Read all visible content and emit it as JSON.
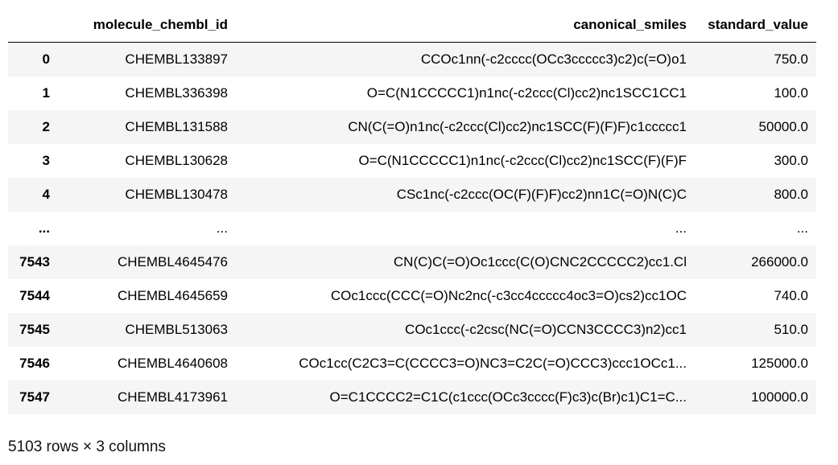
{
  "table": {
    "columns": [
      "",
      "molecule_chembl_id",
      "canonical_smiles",
      "standard_value"
    ],
    "rows": [
      {
        "index": "0",
        "molecule_chembl_id": "CHEMBL133897",
        "canonical_smiles": "CCOc1nn(-c2cccc(OCc3ccccc3)c2)c(=O)o1",
        "standard_value": "750.0"
      },
      {
        "index": "1",
        "molecule_chembl_id": "CHEMBL336398",
        "canonical_smiles": "O=C(N1CCCCC1)n1nc(-c2ccc(Cl)cc2)nc1SCC1CC1",
        "standard_value": "100.0"
      },
      {
        "index": "2",
        "molecule_chembl_id": "CHEMBL131588",
        "canonical_smiles": "CN(C(=O)n1nc(-c2ccc(Cl)cc2)nc1SCC(F)(F)F)c1ccccc1",
        "standard_value": "50000.0"
      },
      {
        "index": "3",
        "molecule_chembl_id": "CHEMBL130628",
        "canonical_smiles": "O=C(N1CCCCC1)n1nc(-c2ccc(Cl)cc2)nc1SCC(F)(F)F",
        "standard_value": "300.0"
      },
      {
        "index": "4",
        "molecule_chembl_id": "CHEMBL130478",
        "canonical_smiles": "CSc1nc(-c2ccc(OC(F)(F)F)cc2)nn1C(=O)N(C)C",
        "standard_value": "800.0"
      },
      {
        "index": "...",
        "molecule_chembl_id": "...",
        "canonical_smiles": "...",
        "standard_value": "..."
      },
      {
        "index": "7543",
        "molecule_chembl_id": "CHEMBL4645476",
        "canonical_smiles": "CN(C)C(=O)Oc1ccc(C(O)CNC2CCCCC2)cc1.Cl",
        "standard_value": "266000.0"
      },
      {
        "index": "7544",
        "molecule_chembl_id": "CHEMBL4645659",
        "canonical_smiles": "COc1ccc(CCC(=O)Nc2nc(-c3cc4ccccc4oc3=O)cs2)cc1OC",
        "standard_value": "740.0"
      },
      {
        "index": "7545",
        "molecule_chembl_id": "CHEMBL513063",
        "canonical_smiles": "COc1ccc(-c2csc(NC(=O)CCN3CCCC3)n2)cc1",
        "standard_value": "510.0"
      },
      {
        "index": "7546",
        "molecule_chembl_id": "CHEMBL4640608",
        "canonical_smiles": "COc1cc(C2C3=C(CCCC3=O)NC3=C2C(=O)CCC3)ccc1OCc1...",
        "standard_value": "125000.0"
      },
      {
        "index": "7547",
        "molecule_chembl_id": "CHEMBL4173961",
        "canonical_smiles": "O=C1CCCC2=C1C(c1ccc(OCc3cccc(F)c3)c(Br)c1)C1=C...",
        "standard_value": "100000.0"
      }
    ]
  },
  "footer": "5103 rows × 3 columns",
  "colors": {
    "odd_row_bg": "#f5f5f5",
    "even_row_bg": "#ffffff",
    "header_rule": "#000000"
  }
}
